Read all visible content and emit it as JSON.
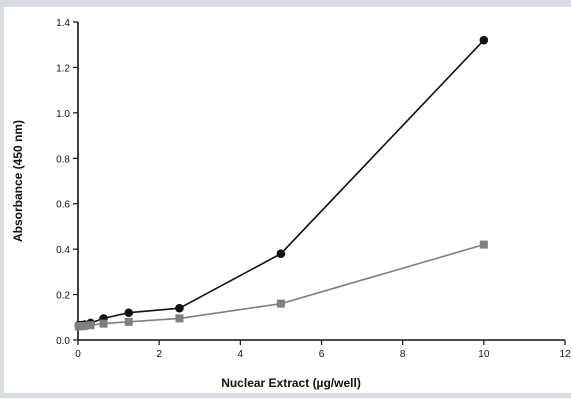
{
  "chart_data": {
    "type": "line",
    "title": "",
    "xlabel": "Nuclear Extract (µg/well)",
    "ylabel": "Absorbance (450 nm)",
    "xlim": [
      0,
      12
    ],
    "ylim": [
      0,
      1.4
    ],
    "xticks": [
      0,
      2,
      4,
      6,
      8,
      10,
      12
    ],
    "xtick_labels": [
      "0",
      "2",
      "4",
      "6",
      "8",
      "10",
      "12"
    ],
    "yticks": [
      0,
      0.2,
      0.4,
      0.6,
      0.8,
      1.0,
      1.2,
      1.4
    ],
    "ytick_labels": [
      "0.0",
      "0.2",
      "0.4",
      "0.6",
      "0.8",
      "1.0",
      "1.2",
      "1.4"
    ],
    "grid": false,
    "legend": "none",
    "series": [
      {
        "marker": "circle",
        "color": "#111111",
        "x": [
          0.02,
          0.08,
          0.16,
          0.31,
          0.63,
          1.25,
          2.5,
          5,
          10
        ],
        "y": [
          0.065,
          0.066,
          0.068,
          0.075,
          0.095,
          0.12,
          0.14,
          0.38,
          1.32
        ]
      },
      {
        "marker": "square",
        "color": "#7f7f7f",
        "x": [
          0.02,
          0.08,
          0.16,
          0.31,
          0.63,
          1.25,
          2.5,
          5,
          10
        ],
        "y": [
          0.06,
          0.061,
          0.062,
          0.065,
          0.072,
          0.08,
          0.095,
          0.16,
          0.42
        ]
      }
    ]
  }
}
